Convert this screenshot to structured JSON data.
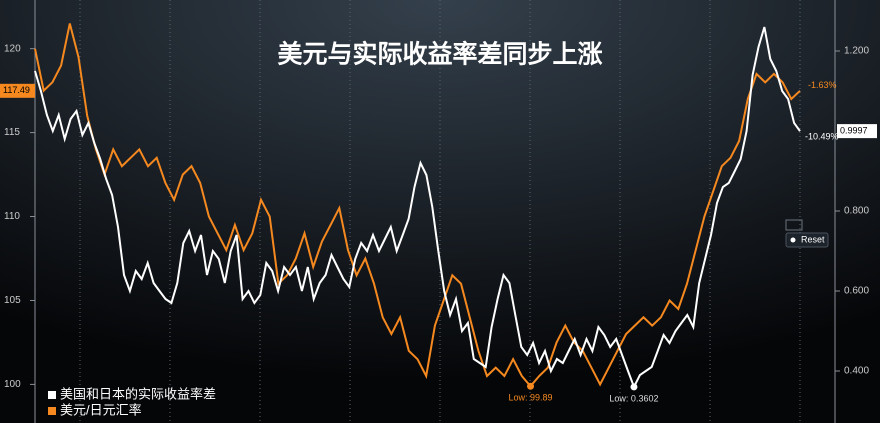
{
  "chart_data": {
    "type": "line",
    "title": "美元与实际收益率差同步上涨",
    "ylim": [
      97.7,
      122.9
    ],
    "yticks": [
      100,
      105,
      110,
      115,
      120
    ],
    "y2lim": [
      0.27,
      1.3275
    ],
    "y2ticks": [
      {
        "value": 0.4,
        "label": "0.400"
      },
      {
        "value": 0.6,
        "label": "0.600"
      },
      {
        "value": 0.8,
        "label": "0.800"
      },
      {
        "value": 1.2,
        "label": "1.200"
      }
    ],
    "grid": false,
    "legend": "bottom-left",
    "series": [
      {
        "name": "美国和日本的实际收益率差",
        "color": "#ffffff",
        "axis": "y2",
        "values": [
          1.15,
          1.1,
          1.04,
          1.0,
          1.04,
          0.98,
          1.03,
          1.05,
          0.99,
          1.02,
          0.97,
          0.93,
          0.88,
          0.84,
          0.76,
          0.64,
          0.6,
          0.65,
          0.63,
          0.67,
          0.62,
          0.6,
          0.58,
          0.57,
          0.62,
          0.72,
          0.75,
          0.7,
          0.74,
          0.64,
          0.7,
          0.68,
          0.62,
          0.7,
          0.74,
          0.58,
          0.6,
          0.57,
          0.59,
          0.67,
          0.65,
          0.6,
          0.66,
          0.64,
          0.66,
          0.6,
          0.66,
          0.58,
          0.62,
          0.64,
          0.69,
          0.66,
          0.63,
          0.61,
          0.68,
          0.72,
          0.7,
          0.74,
          0.7,
          0.73,
          0.76,
          0.7,
          0.74,
          0.78,
          0.86,
          0.92,
          0.89,
          0.81,
          0.7,
          0.6,
          0.54,
          0.58,
          0.5,
          0.52,
          0.43,
          0.42,
          0.41,
          0.51,
          0.58,
          0.64,
          0.62,
          0.54,
          0.46,
          0.44,
          0.47,
          0.42,
          0.45,
          0.4,
          0.43,
          0.42,
          0.45,
          0.48,
          0.44,
          0.48,
          0.45,
          0.51,
          0.49,
          0.46,
          0.48,
          0.44,
          0.4,
          0.3602,
          0.39,
          0.4,
          0.41,
          0.45,
          0.49,
          0.47,
          0.5,
          0.52,
          0.54,
          0.51,
          0.62,
          0.68,
          0.74,
          0.82,
          0.86,
          0.87,
          0.9,
          0.93,
          1.0,
          1.14,
          1.21,
          1.26,
          1.18,
          1.15,
          1.1,
          1.08,
          1.02,
          0.9997
        ]
      },
      {
        "name": "美元/日元汇率",
        "color": "#f5891f",
        "values": [
          120,
          117.5,
          118,
          119,
          121.5,
          119.5,
          116,
          114,
          112.5,
          114,
          113,
          113.5,
          114,
          113,
          113.5,
          112,
          111,
          112.5,
          113,
          112,
          110,
          109,
          108,
          109.5,
          108,
          109,
          111,
          110,
          106,
          106.5,
          107.5,
          109,
          107,
          108.5,
          109.5,
          110.5,
          108,
          106.5,
          107.5,
          106,
          104,
          103,
          104,
          102,
          101.5,
          100.5,
          103.5,
          105,
          106.5,
          106,
          104,
          102,
          100.5,
          101,
          100.5,
          101.5,
          100.5,
          99.89,
          100.5,
          101,
          102.5,
          103.5,
          102.5,
          102,
          101,
          100,
          101,
          102,
          103,
          103.5,
          104,
          103.5,
          104,
          105,
          104.5,
          106,
          108,
          110,
          111.5,
          113,
          113.5,
          114.5,
          117,
          118.5,
          118,
          118.5,
          118,
          117,
          117.49
        ]
      }
    ],
    "annotations": [
      "Low: 0.3602",
      "Low: 99.89",
      "-1.63%",
      "-10.49%"
    ],
    "button": "Reset"
  }
}
